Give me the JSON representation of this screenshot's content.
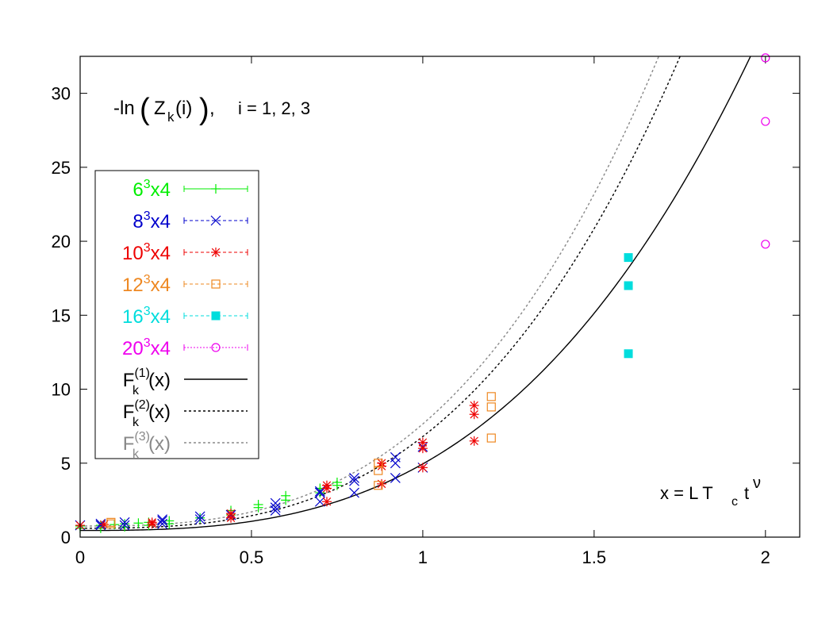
{
  "chart_data": {
    "type": "scatter",
    "title": "",
    "annotation_main": "-ln",
    "annotation_z": "Z",
    "annotation_k": "k",
    "annotation_i": "(i)",
    "annotation_comma": ",",
    "annotation_indices": "i = 1, 2, 3",
    "xaxis_note_prefix": "x = L T",
    "xaxis_note_sub": "c",
    "xaxis_note_t": "t",
    "xaxis_note_sup": "ν",
    "xlim": [
      0,
      2.1
    ],
    "ylim": [
      0,
      32.5
    ],
    "xticks": [
      0,
      0.5,
      1,
      1.5,
      2
    ],
    "xtick_labels": [
      "0",
      "0.5",
      "1",
      "1.5",
      "2"
    ],
    "yticks": [
      0,
      5,
      10,
      15,
      20,
      25,
      30
    ],
    "ytick_labels": [
      "0",
      "5",
      "10",
      "15",
      "20",
      "25",
      "30"
    ],
    "legend_position": "left-middle",
    "series": [
      {
        "name": "6",
        "sup": "3",
        "suffix": "x4",
        "color": "#00ee00",
        "marker": "plus",
        "points": [
          [
            0,
            0.75
          ],
          [
            0.06,
            0.8
          ],
          [
            0.1,
            0.85
          ],
          [
            0.13,
            0.9
          ],
          [
            0.17,
            0.95
          ],
          [
            0.2,
            1.0
          ],
          [
            0.26,
            1.1
          ],
          [
            0.35,
            1.3
          ],
          [
            0.44,
            1.5
          ],
          [
            0.52,
            2.0
          ],
          [
            0.6,
            2.5
          ],
          [
            0.7,
            3.0
          ],
          [
            0.75,
            3.5
          ],
          [
            0.0,
            0.6
          ],
          [
            0.06,
            0.6
          ],
          [
            0.13,
            0.7
          ],
          [
            0.2,
            0.8
          ],
          [
            0.26,
            0.9
          ],
          [
            0.44,
            1.8
          ],
          [
            0.52,
            2.2
          ],
          [
            0.6,
            2.8
          ],
          [
            0.7,
            3.3
          ],
          [
            0.75,
            3.7
          ]
        ]
      },
      {
        "name": "8",
        "sup": "3",
        "suffix": "x4",
        "color": "#0000cc",
        "marker": "cross",
        "points": [
          [
            0,
            0.8
          ],
          [
            0.06,
            0.9
          ],
          [
            0.13,
            1.0
          ],
          [
            0.24,
            1.1
          ],
          [
            0.35,
            1.2
          ],
          [
            0.44,
            1.5
          ],
          [
            0.57,
            2.0
          ],
          [
            0.7,
            2.4
          ],
          [
            0.8,
            3.0
          ],
          [
            0.92,
            4.0
          ],
          [
            1.0,
            4.7
          ],
          [
            0.57,
            1.8
          ],
          [
            0.7,
            3.1
          ],
          [
            0.8,
            3.8
          ],
          [
            0.92,
            5.0
          ],
          [
            0.06,
            0.8
          ],
          [
            0.24,
            1.2
          ],
          [
            0.35,
            1.4
          ],
          [
            0.57,
            2.3
          ],
          [
            0.7,
            3.0
          ],
          [
            0.8,
            4.0
          ],
          [
            0.92,
            5.4
          ],
          [
            1.0,
            6.1
          ],
          [
            0.24,
            0.9
          ],
          [
            0.13,
            0.8
          ]
        ]
      },
      {
        "name": "10",
        "sup": "3",
        "suffix": "x4",
        "color": "#ee0000",
        "marker": "star",
        "points": [
          [
            0,
            0.8
          ],
          [
            0.07,
            0.85
          ],
          [
            0.21,
            1.0
          ],
          [
            0.44,
            1.3
          ],
          [
            0.72,
            2.4
          ],
          [
            0.88,
            3.6
          ],
          [
            1.0,
            4.7
          ],
          [
            1.15,
            6.5
          ],
          [
            0.72,
            3.3
          ],
          [
            0.88,
            4.8
          ],
          [
            1.0,
            6.0
          ],
          [
            1.15,
            8.3
          ],
          [
            0.72,
            3.5
          ],
          [
            0.88,
            5.0
          ],
          [
            1.0,
            6.4
          ],
          [
            1.15,
            8.9
          ],
          [
            0.21,
            0.9
          ],
          [
            0.44,
            1.6
          ]
        ]
      },
      {
        "name": "12",
        "sup": "3",
        "suffix": "x4",
        "color": "#ee8822",
        "marker": "square",
        "points": [
          [
            0.09,
            0.9
          ],
          [
            0.09,
            1.0
          ],
          [
            0.87,
            3.5
          ],
          [
            0.87,
            4.5
          ],
          [
            0.87,
            5.0
          ],
          [
            1.2,
            6.7
          ],
          [
            1.2,
            8.8
          ],
          [
            1.2,
            9.5
          ]
        ]
      },
      {
        "name": "16",
        "sup": "3",
        "suffix": "x4",
        "color": "#00dddd",
        "marker": "filledsquare",
        "points": [
          [
            1.6,
            12.4
          ],
          [
            1.6,
            17.0
          ],
          [
            1.6,
            18.9
          ]
        ]
      },
      {
        "name": "20",
        "sup": "3",
        "suffix": "x4",
        "color": "#ee00ee",
        "marker": "circle",
        "points": [
          [
            2.0,
            19.8
          ],
          [
            2.0,
            28.1
          ],
          [
            2.0,
            32.4
          ]
        ]
      }
    ],
    "curves": [
      {
        "name": "F",
        "sub": "k",
        "sup": "(1)",
        "arg": "(x)",
        "color": "#000000",
        "label_color": "#000000",
        "dash": "",
        "coef": [
          0.45,
          0.45,
          4.5
        ]
      },
      {
        "name": "F",
        "sub": "k",
        "sup": "(2)",
        "arg": "(x)",
        "color": "#000000",
        "label_color": "#000000",
        "dash": "3,3",
        "coef": [
          0.6,
          0.6,
          6.2
        ]
      },
      {
        "name": "F",
        "sub": "k",
        "sup": "(3)",
        "arg": "(x)",
        "color": "#888888",
        "label_color": "#888888",
        "dash": "3,3",
        "coef": [
          0.75,
          0.75,
          6.9
        ]
      }
    ]
  }
}
